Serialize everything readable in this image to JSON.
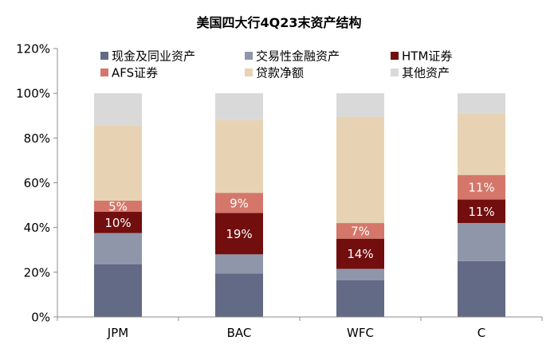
{
  "chart_data": {
    "type": "bar",
    "stacked": true,
    "title": "美国四大行4Q23末资产结构",
    "categories": [
      "JPM",
      "BAC",
      "WFC",
      "C"
    ],
    "ylim": [
      0,
      120
    ],
    "yticks": [
      "0%",
      "20%",
      "40%",
      "60%",
      "80%",
      "100%",
      "120%"
    ],
    "ytick_values": [
      0,
      20,
      40,
      60,
      80,
      100,
      120
    ],
    "legend_position": "top",
    "grid": false,
    "series": [
      {
        "name": "现金及同业资产",
        "color": "#636a85",
        "values": [
          23.5,
          19.5,
          16.5,
          25.0
        ]
      },
      {
        "name": "交易性金融资产",
        "color": "#8f96aa",
        "values": [
          14.0,
          8.5,
          5.0,
          17.0
        ]
      },
      {
        "name": "HTM证券",
        "color": "#720e0e",
        "values": [
          9.5,
          18.5,
          13.5,
          10.5
        ]
      },
      {
        "name": "AFS证券",
        "color": "#d4776a",
        "values": [
          5.0,
          9.0,
          7.0,
          11.0
        ]
      },
      {
        "name": "贷款净额",
        "color": "#e7d3b3",
        "values": [
          33.5,
          32.5,
          47.5,
          27.5
        ]
      },
      {
        "name": "其他资产",
        "color": "#d9d9d9",
        "values": [
          14.5,
          12.0,
          10.5,
          9.0
        ]
      }
    ],
    "data_labels": [
      {
        "series": 2,
        "category": 0,
        "text": "10%"
      },
      {
        "series": 3,
        "category": 0,
        "text": "5%"
      },
      {
        "series": 2,
        "category": 1,
        "text": "19%"
      },
      {
        "series": 3,
        "category": 1,
        "text": "9%"
      },
      {
        "series": 2,
        "category": 2,
        "text": "14%"
      },
      {
        "series": 3,
        "category": 2,
        "text": "7%"
      },
      {
        "series": 2,
        "category": 3,
        "text": "11%"
      },
      {
        "series": 3,
        "category": 3,
        "text": "11%"
      }
    ]
  }
}
